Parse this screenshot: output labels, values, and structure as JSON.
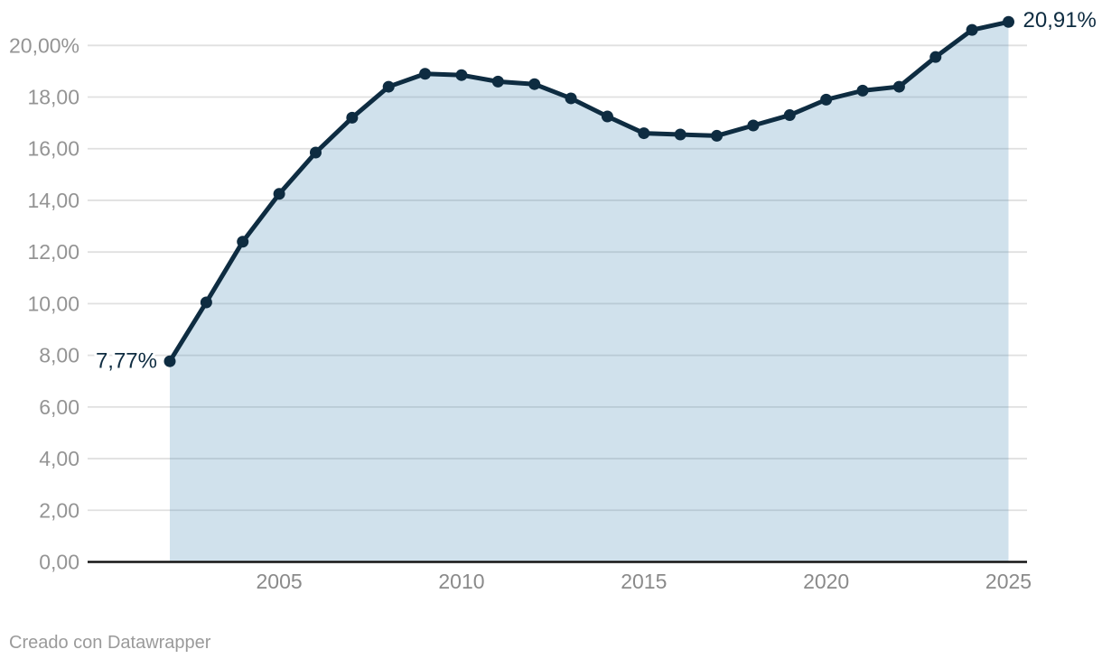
{
  "chart_data": {
    "type": "area",
    "x": [
      2002,
      2003,
      2004,
      2005,
      2006,
      2007,
      2008,
      2009,
      2010,
      2011,
      2012,
      2013,
      2014,
      2015,
      2016,
      2017,
      2018,
      2019,
      2020,
      2021,
      2022,
      2023,
      2024,
      2025
    ],
    "values": [
      7.77,
      10.05,
      12.4,
      14.25,
      15.85,
      17.2,
      18.4,
      18.9,
      18.85,
      18.6,
      18.5,
      17.95,
      17.25,
      16.6,
      16.55,
      16.5,
      16.9,
      17.3,
      17.9,
      18.25,
      18.4,
      19.55,
      20.6,
      20.91
    ],
    "title": "",
    "xlabel": "",
    "ylabel": "",
    "xlim": [
      2002,
      2025
    ],
    "ylim": [
      0,
      21.2
    ],
    "grid": true,
    "legend_position": "none",
    "first_value_label": "7,77%",
    "last_value_label": "20,91%",
    "y_ticks": {
      "values": [
        0,
        2,
        4,
        6,
        8,
        10,
        12,
        14,
        16,
        18,
        20
      ],
      "labels": [
        "0,00",
        "2,00",
        "4,00",
        "6,00",
        "8,00",
        "10,00",
        "12,00",
        "14,00",
        "16,00",
        "18,00",
        "20,00%"
      ]
    },
    "x_ticks": {
      "values": [
        2005,
        2010,
        2015,
        2020,
        2025
      ],
      "labels": [
        "2005",
        "2010",
        "2015",
        "2020",
        "2025"
      ]
    },
    "colors": {
      "line": "#0e2c41",
      "point": "#0e2c41",
      "area": "#4587b4",
      "area_opacity": 0.25,
      "grid": "#e0e0e0",
      "axis": "#151515",
      "y_tick_text": "#949494",
      "x_tick_text": "#8a8a8a",
      "value_label_text": "#0e2c41"
    }
  },
  "footer": {
    "text": "Creado con Datawrapper"
  }
}
